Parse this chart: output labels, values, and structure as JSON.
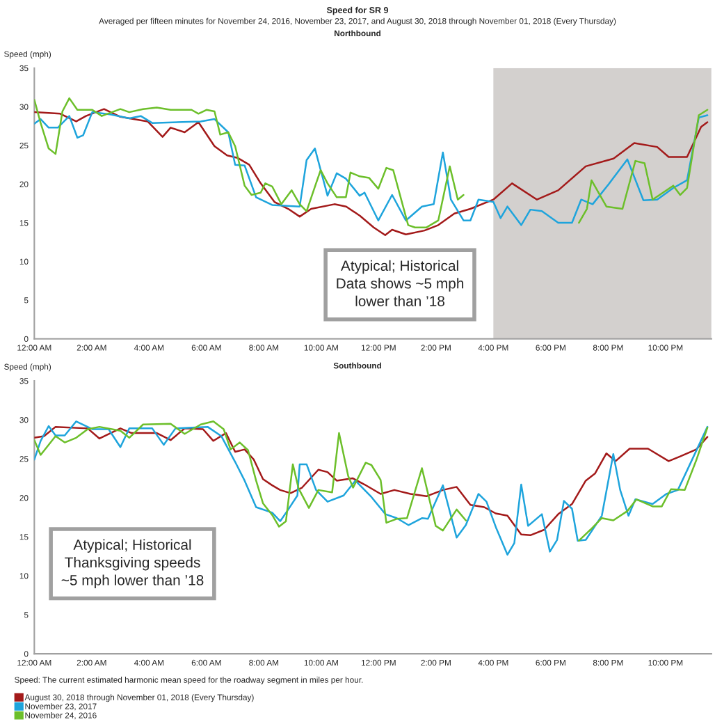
{
  "chart_data": [
    {
      "type": "line",
      "title": "Speed for SR 9",
      "subtitle": "Averaged per fifteen minutes for November 24, 2016, November 23, 2017, and August 30, 2018 through November 01, 2018 (Every Thursday)",
      "ylabel": "Speed (mph)",
      "annotations": [
        "Northbound",
        "Atypical; Historical Data shows ~5 mph lower than ’18"
      ],
      "xlim": [
        0,
        23.6
      ],
      "xticks": [
        {
          "value": 0,
          "label": "12:00 AM"
        },
        {
          "value": 2,
          "label": "2:00 AM"
        },
        {
          "value": 4,
          "label": "4:00 AM"
        },
        {
          "value": 6,
          "label": "6:00 AM"
        },
        {
          "value": 8,
          "label": "8:00 AM"
        },
        {
          "value": 10,
          "label": "10:00 AM"
        },
        {
          "value": 12,
          "label": "12:00 PM"
        },
        {
          "value": 14,
          "label": "2:00 PM"
        },
        {
          "value": 16,
          "label": "4:00 PM"
        },
        {
          "value": 18,
          "label": "6:00 PM"
        },
        {
          "value": 20,
          "label": "8:00 PM"
        },
        {
          "value": 22,
          "label": "10:00 PM"
        }
      ],
      "ylim": [
        0,
        35
      ],
      "yticks": [
        0,
        5,
        10,
        15,
        20,
        25,
        30,
        35
      ],
      "grid": false,
      "bands": [
        {
          "axis": "x",
          "from": 16,
          "to": 23.6,
          "color": "#d3d0ce"
        }
      ],
      "series": [
        {
          "color": "#a31a1a",
          "x": [
            0,
            0.9,
            1.46,
            1.8,
            2.43,
            3.0,
            3.95,
            4.47,
            4.75,
            5.24,
            5.72,
            6.28,
            6.72,
            7.08,
            7.49,
            7.89,
            8.37,
            8.85,
            9.25,
            9.65,
            10.46,
            10.87,
            11.35,
            11.83,
            12.23,
            12.47,
            12.95,
            13.6,
            14.08,
            14.64,
            15.2,
            16.0,
            16.65,
            17.52,
            18.26,
            19.22,
            20.19,
            20.91,
            21.71,
            22.11,
            22.75,
            23.24,
            23.46
          ],
          "values": [
            29.3,
            29.1,
            28.1,
            28.8,
            29.7,
            28.7,
            28.1,
            26.1,
            27.3,
            26.7,
            28.0,
            24.9,
            23.7,
            23.4,
            22.5,
            20.1,
            17.7,
            16.8,
            15.8,
            16.8,
            17.4,
            17.1,
            15.9,
            14.4,
            13.4,
            14.1,
            13.5,
            14.0,
            14.7,
            16.2,
            16.8,
            18.0,
            20.1,
            18.0,
            19.2,
            22.3,
            23.3,
            25.3,
            24.8,
            23.5,
            23.5,
            27.4,
            28.0
          ]
        },
        {
          "color": "#1ea4dc",
          "x": [
            0,
            0.22,
            0.5,
            0.82,
            1.22,
            1.5,
            1.7,
            2.02,
            2.67,
            3.31,
            3.71,
            4.11,
            5.8,
            6.28,
            6.76,
            7.0,
            7.33,
            7.73,
            8.29,
            9.25,
            9.49,
            9.78,
            10.22,
            10.54,
            10.86,
            11.34,
            11.51,
            11.99,
            12.47,
            12.95,
            13.51,
            13.92,
            14.24,
            14.52,
            14.96,
            15.2,
            15.48,
            16.0,
            16.25,
            16.49,
            16.97,
            17.29,
            17.69,
            18.26,
            18.74,
            19.06,
            19.46,
            20.02,
            20.67,
            21.23,
            21.71,
            22.27,
            22.75,
            23.16,
            23.46
          ],
          "values": [
            27.8,
            28.4,
            27.3,
            27.3,
            28.8,
            26.0,
            26.3,
            29.3,
            29.0,
            28.5,
            28.8,
            27.9,
            28.1,
            28.4,
            26.7,
            22.5,
            22.4,
            18.3,
            17.3,
            17.1,
            23.1,
            24.6,
            18.5,
            21.4,
            20.7,
            18.5,
            18.9,
            15.3,
            18.6,
            15.3,
            17.1,
            17.4,
            24.1,
            18.0,
            15.3,
            15.3,
            18.0,
            17.7,
            15.6,
            17.1,
            14.7,
            16.7,
            16.5,
            15.0,
            15.0,
            18.0,
            17.4,
            20.0,
            23.2,
            17.9,
            18.0,
            19.5,
            20.5,
            28.6,
            28.9
          ]
        },
        {
          "color": "#6cbf2a",
          "x": [
            0,
            0.22,
            0.5,
            0.74,
            0.98,
            1.22,
            1.5,
            2.02,
            2.35,
            3.0,
            3.31,
            3.79,
            4.27,
            4.75,
            5.48,
            5.72,
            6.0,
            6.28,
            6.48,
            6.76,
            7.0,
            7.33,
            7.57,
            7.89,
            8.05,
            8.29,
            8.61,
            8.97,
            9.25,
            9.49,
            9.82,
            9.98,
            10.22,
            10.54,
            10.86,
            11.02,
            11.34,
            11.67,
            11.99,
            12.27,
            12.51,
            13.03,
            13.27,
            13.67,
            14.08,
            14.48,
            14.76,
            14.96,
            17.0,
            18.98,
            19.26,
            19.42,
            19.94,
            20.5,
            20.95,
            21.27,
            21.55,
            22.27,
            22.51,
            22.75,
            23.16,
            23.46
          ],
          "values": [
            30.9,
            27.9,
            24.6,
            23.9,
            29.4,
            31.1,
            29.6,
            29.6,
            28.8,
            29.7,
            29.3,
            29.7,
            29.9,
            29.6,
            29.6,
            29.1,
            29.6,
            29.4,
            26.4,
            26.7,
            24.9,
            19.8,
            18.6,
            18.9,
            20.1,
            19.7,
            17.4,
            19.2,
            17.4,
            16.5,
            20.1,
            21.8,
            20.1,
            18.3,
            18.3,
            21.5,
            21.0,
            20.8,
            19.4,
            22.1,
            21.8,
            14.7,
            14.4,
            14.4,
            15.3,
            22.3,
            18.0,
            18.6,
            null,
            15.0,
            16.8,
            20.5,
            17.1,
            16.8,
            23.0,
            22.7,
            18.0,
            19.8,
            18.6,
            19.5,
            28.9,
            29.6
          ]
        }
      ]
    },
    {
      "type": "line",
      "title": "Southbound",
      "ylabel": "Speed (mph)",
      "annotations": [
        "Atypical; Historical Thanksgiving speeds ~5 mph lower than ’18",
        "Speed: The current estimated harmonic mean speed for the roadway segment in miles per hour."
      ],
      "xlim": [
        0,
        23.6
      ],
      "xticks": [
        {
          "value": 0,
          "label": "12:00 AM"
        },
        {
          "value": 2,
          "label": "2:00 AM"
        },
        {
          "value": 4,
          "label": "4:00 AM"
        },
        {
          "value": 6,
          "label": "6:00 AM"
        },
        {
          "value": 8,
          "label": "8:00 AM"
        },
        {
          "value": 10,
          "label": "10:00 AM"
        },
        {
          "value": 12,
          "label": "12:00 PM"
        },
        {
          "value": 14,
          "label": "2:00 PM"
        },
        {
          "value": 16,
          "label": "4:00 PM"
        },
        {
          "value": 18,
          "label": "6:00 PM"
        },
        {
          "value": 20,
          "label": "8:00 PM"
        },
        {
          "value": 22,
          "label": "10:00 PM"
        }
      ],
      "ylim": [
        0,
        35
      ],
      "yticks": [
        0,
        5,
        10,
        15,
        20,
        25,
        30,
        35
      ],
      "grid": false,
      "legend": "bottom",
      "series": [
        {
          "name": "August 30, 2018 through November 01, 2018 (Every Thursday)",
          "color": "#a31a1a",
          "x": [
            0,
            0.34,
            0.74,
            1.86,
            2.27,
            3.0,
            3.39,
            4.27,
            4.75,
            5.24,
            5.88,
            6.24,
            6.68,
            7.0,
            7.33,
            7.65,
            7.97,
            8.29,
            8.57,
            8.93,
            9.33,
            9.9,
            10.22,
            10.54,
            11.1,
            11.51,
            12.07,
            12.55,
            13.11,
            13.67,
            14.24,
            14.72,
            15.2,
            15.68,
            16.08,
            16.49,
            16.97,
            17.29,
            17.77,
            18.26,
            18.74,
            19.22,
            19.54,
            19.94,
            20.26,
            20.75,
            21.39,
            22.11,
            22.51,
            23.07,
            23.46
          ],
          "values": [
            27.7,
            27.9,
            29.1,
            28.9,
            27.6,
            28.9,
            28.3,
            28.3,
            27.4,
            28.9,
            28.8,
            27.3,
            28.3,
            25.9,
            26.2,
            24.9,
            22.4,
            21.6,
            21.0,
            20.6,
            21.3,
            23.6,
            23.3,
            22.2,
            22.5,
            21.7,
            20.5,
            21.0,
            20.5,
            20.2,
            21.0,
            21.4,
            19.1,
            18.8,
            18.0,
            17.7,
            15.3,
            15.2,
            15.9,
            17.9,
            19.2,
            22.2,
            23.1,
            25.7,
            24.7,
            26.3,
            26.3,
            24.7,
            25.3,
            26.2,
            27.8
          ]
        },
        {
          "name": "November 23, 2017",
          "color": "#1ea4dc",
          "x": [
            0,
            0.22,
            0.5,
            0.74,
            1.06,
            1.46,
            2.02,
            2.59,
            3.0,
            3.31,
            4.11,
            4.51,
            4.92,
            6.04,
            6.52,
            7.0,
            7.33,
            7.73,
            8.29,
            8.57,
            8.85,
            9.17,
            9.25,
            9.49,
            9.82,
            10.22,
            10.78,
            11.19,
            11.75,
            12.24,
            12.63,
            13.04,
            13.52,
            13.72,
            14.24,
            14.72,
            15.04,
            15.48,
            15.76,
            16.09,
            16.49,
            16.73,
            16.97,
            17.21,
            17.69,
            17.97,
            18.22,
            18.46,
            18.74,
            18.94,
            19.22,
            19.78,
            20.18,
            20.42,
            20.71,
            20.95,
            21.55,
            22.03,
            22.43,
            22.75,
            23.46
          ],
          "values": [
            24.9,
            27.3,
            29.2,
            28.0,
            28.0,
            29.8,
            28.8,
            28.8,
            26.5,
            28.9,
            28.9,
            26.8,
            28.9,
            29.1,
            27.9,
            24.6,
            22.2,
            18.8,
            18.1,
            17.0,
            18.5,
            20.3,
            24.3,
            24.3,
            21.0,
            19.5,
            20.3,
            22.2,
            20.1,
            17.9,
            17.4,
            16.5,
            17.4,
            17.3,
            21.6,
            14.9,
            16.5,
            20.5,
            19.5,
            16.2,
            12.7,
            14.2,
            21.7,
            16.4,
            17.9,
            13.1,
            14.6,
            19.6,
            18.6,
            14.5,
            14.6,
            17.7,
            25.6,
            21.0,
            17.7,
            19.8,
            19.2,
            20.5,
            21.0,
            23.5,
            29.1
          ]
        },
        {
          "name": "November 24, 2016",
          "color": "#6cbf2a",
          "x": [
            0,
            0.22,
            0.74,
            1.06,
            1.46,
            1.86,
            2.27,
            3.0,
            3.31,
            3.79,
            4.75,
            5.24,
            5.8,
            6.24,
            6.6,
            6.84,
            7.16,
            7.45,
            7.73,
            7.97,
            8.29,
            8.53,
            8.77,
            9.01,
            9.21,
            9.57,
            9.9,
            10.38,
            10.62,
            10.94,
            11.11,
            11.55,
            11.75,
            12.07,
            12.27,
            12.63,
            12.99,
            13.51,
            13.99,
            14.24,
            14.72,
            15.04,
            17.0,
            18.98,
            19.38,
            19.78,
            20.18,
            20.67,
            20.99,
            21.55,
            21.87,
            22.19,
            22.67,
            23.07,
            23.46
          ],
          "values": [
            27.4,
            25.5,
            27.9,
            27.1,
            27.7,
            28.8,
            29.1,
            28.6,
            27.7,
            29.4,
            29.5,
            28.2,
            29.4,
            29.8,
            28.8,
            26.2,
            27.1,
            26.1,
            22.2,
            19.3,
            17.8,
            16.3,
            17.0,
            24.3,
            21.2,
            18.7,
            21.0,
            20.7,
            28.3,
            22.8,
            21.3,
            24.5,
            24.2,
            22.3,
            16.8,
            17.3,
            17.4,
            23.8,
            16.4,
            15.8,
            18.5,
            17.1,
            null,
            14.5,
            15.9,
            17.4,
            17.1,
            18.3,
            19.8,
            18.9,
            18.9,
            21.1,
            21.0,
            24.8,
            29.0
          ]
        }
      ]
    }
  ]
}
